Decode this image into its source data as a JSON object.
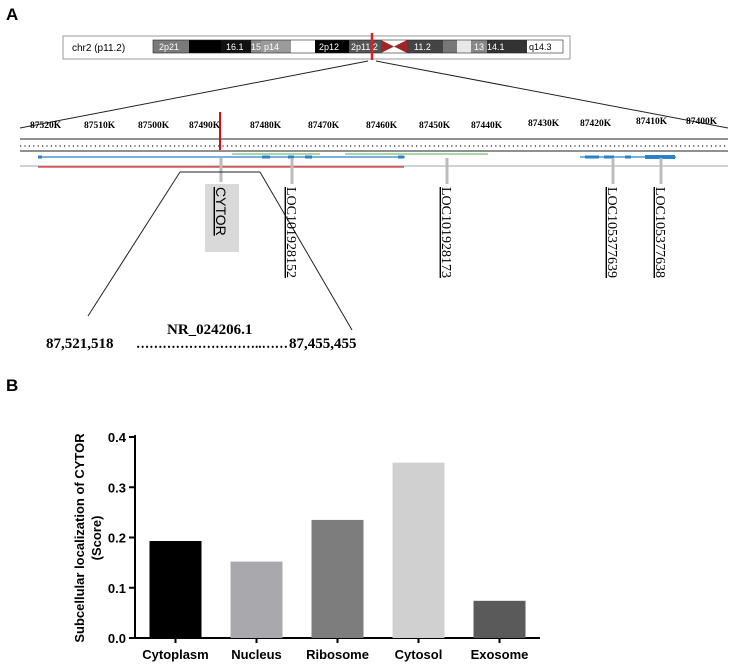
{
  "panel_a": {
    "label": "A",
    "ideogram": {
      "chrom_label": "chr2 (p11.2)",
      "bands": [
        "2p21",
        "16.1",
        "15",
        "p14",
        "2p12",
        "2p11.2",
        "11.2",
        "13",
        "14.1",
        "q14.3"
      ]
    },
    "ruler_ticks": [
      "87520K",
      "87510K",
      "87500K",
      "87490K",
      "87480K",
      "87470K",
      "87460K",
      "87450K",
      "87440K",
      "87430K",
      "87420K",
      "87410K",
      "87400K"
    ],
    "genes": [
      "CYTOR",
      "LOC101928152",
      "LOC101928173",
      "LOC105377639",
      "LOC105377638"
    ],
    "accession": "NR_024206.1",
    "coord_start": "87,521,518",
    "coord_end": "87,455,455",
    "coord_dots": "………………………..……"
  },
  "panel_b": {
    "label": "B"
  },
  "chart_data": {
    "type": "bar",
    "title": "",
    "xlabel": "",
    "ylabel": "Subcellular localization of CYTOR (Score)",
    "categories": [
      "Cytoplasm",
      "Nucleus",
      "Ribosome",
      "Cytosol",
      "Exosome"
    ],
    "values": [
      0.193,
      0.152,
      0.235,
      0.349,
      0.074
    ],
    "colors": [
      "#000000",
      "#a8a8ad",
      "#7d7d7d",
      "#d0d0d0",
      "#5a5a5a"
    ],
    "ylim": [
      0,
      0.4
    ],
    "yticks": [
      "0.0",
      "0.1",
      "0.2",
      "0.3",
      "0.4"
    ],
    "grid": false
  }
}
